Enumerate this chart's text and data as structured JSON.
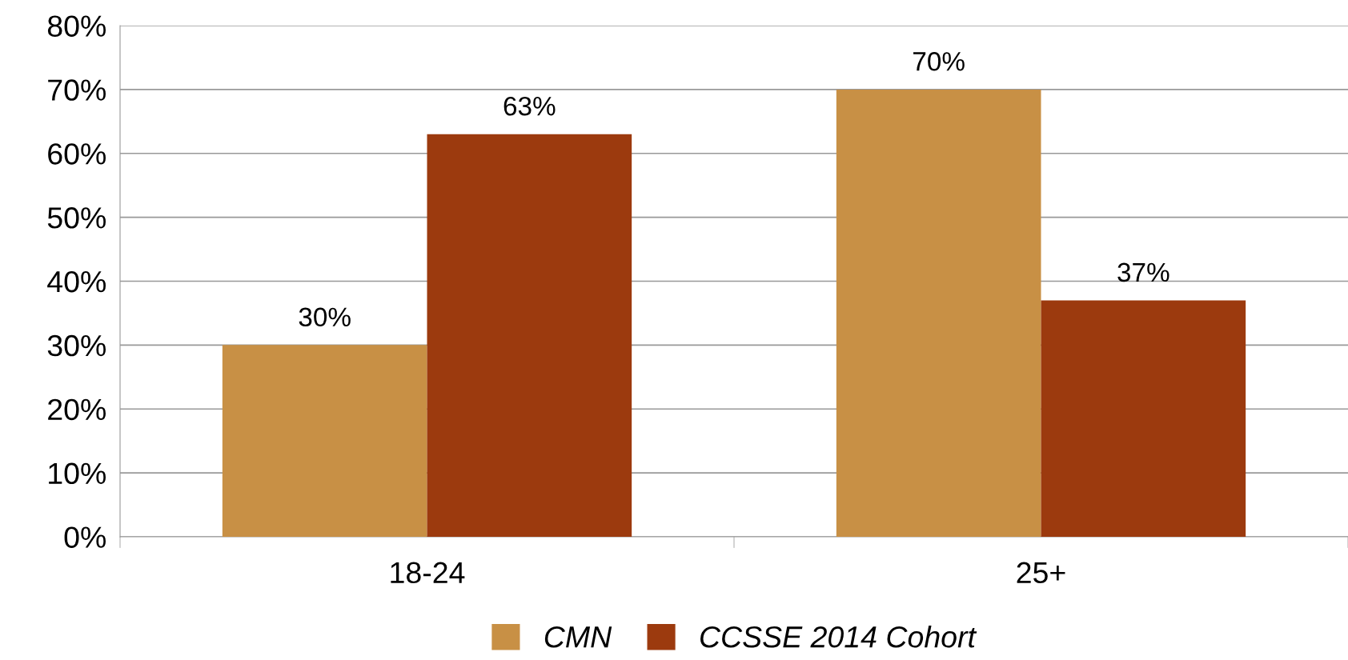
{
  "chart_data": {
    "type": "bar",
    "categories": [
      "18-24",
      "25+"
    ],
    "series": [
      {
        "name": "CMN",
        "color": "#c89045",
        "values": [
          30,
          70
        ],
        "value_labels": [
          "30%",
          "70%"
        ]
      },
      {
        "name": "CCSSE 2014 Cohort",
        "color": "#9c3a0e",
        "values": [
          63,
          37
        ],
        "value_labels": [
          "63%",
          "37%"
        ]
      }
    ],
    "ylim": [
      0,
      80
    ],
    "yticks": [
      {
        "value": 0,
        "label": "0%"
      },
      {
        "value": 10,
        "label": "10%"
      },
      {
        "value": 20,
        "label": "20%"
      },
      {
        "value": 30,
        "label": "30%"
      },
      {
        "value": 40,
        "label": "40%"
      },
      {
        "value": 50,
        "label": "50%"
      },
      {
        "value": 60,
        "label": "60%"
      },
      {
        "value": 70,
        "label": "70%"
      },
      {
        "value": 80,
        "label": "80%"
      }
    ],
    "grid": "y",
    "legend": "bottom"
  }
}
